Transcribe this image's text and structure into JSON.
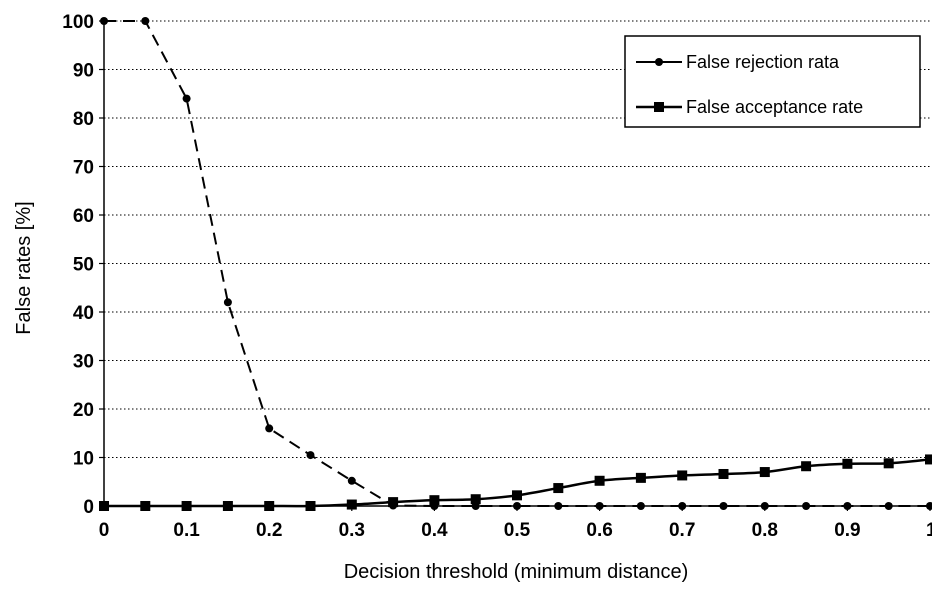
{
  "chart_data": {
    "type": "line",
    "xlabel": "Decision threshold (minimum distance)",
    "ylabel": "False rates [%]",
    "xlim": [
      0,
      1
    ],
    "ylim": [
      0,
      100
    ],
    "x_ticks": [
      "0",
      "0.1",
      "0.2",
      "0.3",
      "0.4",
      "0.5",
      "0.6",
      "0.7",
      "0.8",
      "0.9",
      "1"
    ],
    "y_ticks": [
      "0",
      "10",
      "20",
      "30",
      "40",
      "50",
      "60",
      "70",
      "80",
      "90",
      "100"
    ],
    "grid": "horizontal dotted",
    "legend_position": "top-right",
    "x": [
      0,
      0.05,
      0.1,
      0.15,
      0.2,
      0.25,
      0.3,
      0.35,
      0.4,
      0.45,
      0.5,
      0.55,
      0.6,
      0.65,
      0.7,
      0.75,
      0.8,
      0.85,
      0.9,
      0.95,
      1
    ],
    "series": [
      {
        "name": "False rejection rata",
        "marker": "circle",
        "line_style": "dashed",
        "color": "#000000",
        "values": [
          100,
          100,
          84,
          42,
          16,
          10.5,
          5.2,
          0.1,
          0,
          0,
          0,
          0,
          0,
          0,
          0,
          0,
          0,
          0,
          0,
          0,
          0
        ]
      },
      {
        "name": "False acceptance rate",
        "marker": "square",
        "line_style": "solid",
        "color": "#000000",
        "values": [
          0,
          0,
          0,
          0,
          0,
          0,
          0.3,
          0.8,
          1.2,
          1.4,
          2.2,
          3.7,
          5.2,
          5.8,
          6.3,
          6.6,
          7.0,
          8.2,
          8.7,
          8.8,
          9.6
        ]
      }
    ]
  }
}
